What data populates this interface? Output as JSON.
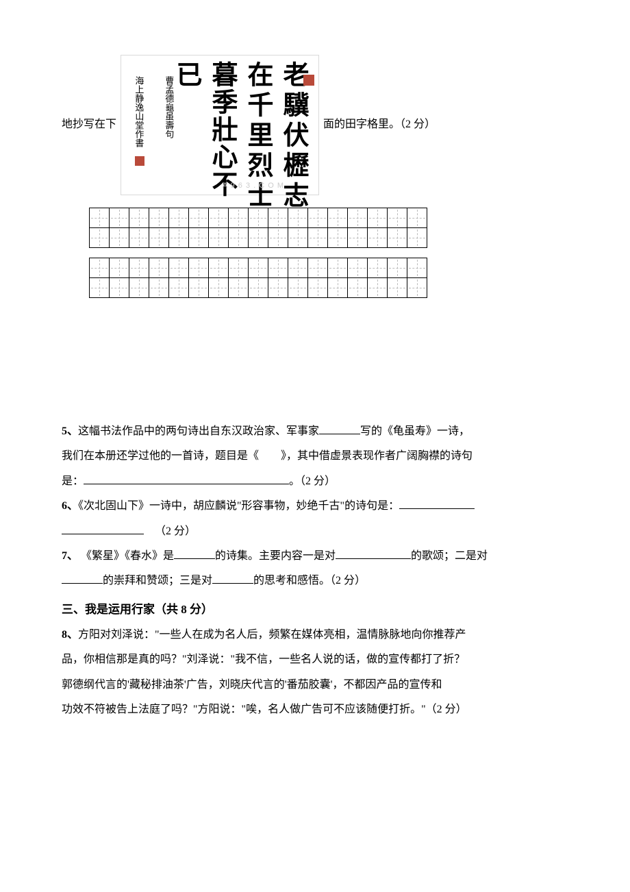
{
  "top": {
    "left_text": "地抄写在下",
    "right_text": "面的田字格里。（2 分）",
    "calligraphy": {
      "col1": "老驥伏櫪志",
      "col2": "在千里烈士",
      "col3": "暮季壯心不",
      "col4": "已",
      "small1": "曹孟德龜虽壽句",
      "small2": "海上静逸山堂作書",
      "watermark": "A 9 6 3 . C O M"
    }
  },
  "q5": {
    "num": "5、",
    "t1": "这幅书法作品中的两句诗出自东汉政治家、军事家",
    "t2": "写的《龟虽寿》一诗，",
    "t3": "我们在本册还学过他的一首诗，题目是《　　》，其中借虚景表现作者广阔胸襟的诗句",
    "t4": "是：",
    "t5": "。（2 分）"
  },
  "q6": {
    "num": "6、",
    "t1": "《次北固山下》一诗中，胡应麟说\"形容事物，妙绝千古\"的诗句是：",
    "t2": "（2 分）"
  },
  "q7": {
    "num": "7、",
    "t1": " 《繁星》《春水》是",
    "t2": "的诗集。主要内容一是对",
    "t3": "的歌颂；二是对",
    "t4": "的崇拜和赞颂；三是对",
    "t5": "的思考和感悟。（2 分）"
  },
  "section3": {
    "title": "三、我是运用行家（共 8 分）"
  },
  "q8": {
    "num": "8、",
    "t1": "方阳对刘泽说：\"一些人在成为名人后，频繁在媒体亮相，温情脉脉地向你推荐产",
    "t2": "品，你相信那是真的吗？\"刘泽说：\"我不信，一些名人说的话，做的宣传都打了折？",
    "t3": "郭德纲代言的'藏秘排油茶'广告，刘晓庆代言的'番茄胶囊'，不都因产品的宣传和",
    "t4": "功效不符被告上法庭了吗？\"方阳说：\"唉，名人做广告可不应该随便打折。\"（2 分）"
  }
}
